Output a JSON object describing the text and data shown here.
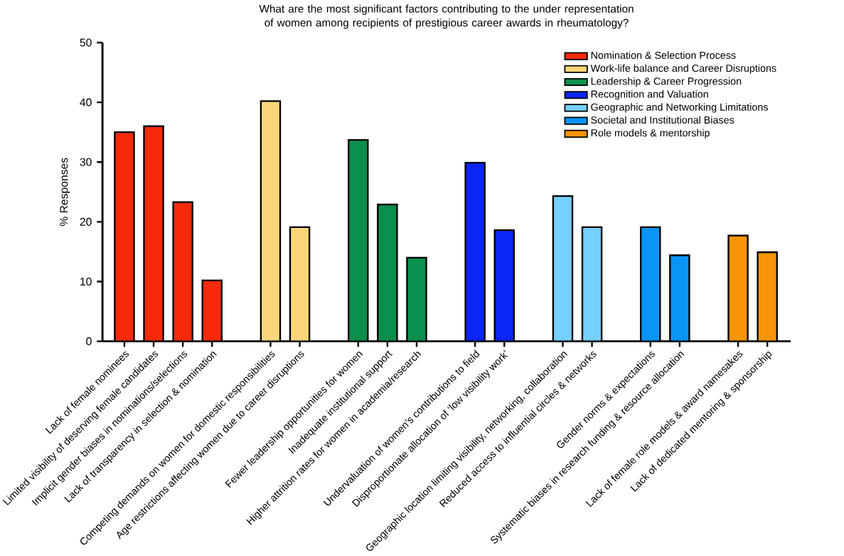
{
  "chart_data": {
    "type": "bar",
    "title": "What are the most significant factors contributing to the under representation of women among recipients of prestigious career awards in rheumatology?",
    "ylabel": "% Responses",
    "categories": [
      "Lack of female nominees",
      "Limited visibility of deserving female candidates",
      "Implicit gender biases in nominations/selections",
      "Lack of transparency in selection & nomination",
      "Competing demands on women for domestic responsibilities",
      "Age restrictions affecting women due to career disruptions",
      "Fewer leadership opportunities for women",
      "Inadequate institutional support",
      "Higher attrition rates for women in academia/research",
      "Undervaluation of women’s contributions to field",
      "Disproportionate allocation of ‘low visibility work’",
      "Geographic location limiting visibility, networking, collaboration",
      "Reduced access to influential circles & networks",
      "Gender norms & expectations",
      "Systematic biases in research funding & resource allocation",
      "Lack of female role models & award namesakes",
      "Lack of dedicated mentoring & sponsorship"
    ],
    "series": [
      {
        "name": "Nomination & Selection Process",
        "color": "#f52a0a",
        "values": [
          35.0,
          36.0,
          23.3,
          10.2,
          null,
          null,
          null,
          null,
          null,
          null,
          null,
          null,
          null,
          null,
          null,
          null,
          null
        ]
      },
      {
        "name": "Work-life balance and Career Disruptions",
        "color": "#fcd57a",
        "values": [
          null,
          null,
          null,
          null,
          40.2,
          19.1,
          null,
          null,
          null,
          null,
          null,
          null,
          null,
          null,
          null,
          null,
          null
        ]
      },
      {
        "name": "Leadership & Career Progression",
        "color": "#0b8f4e",
        "values": [
          null,
          null,
          null,
          null,
          null,
          null,
          33.7,
          22.9,
          14.0,
          null,
          null,
          null,
          null,
          null,
          null,
          null,
          null
        ]
      },
      {
        "name": "Recognition and Valuation",
        "color": "#0a25f5",
        "values": [
          null,
          null,
          null,
          null,
          null,
          null,
          null,
          null,
          null,
          29.9,
          18.6,
          null,
          null,
          null,
          null,
          null,
          null
        ]
      },
      {
        "name": "Geographic and Networking Limitations",
        "color": "#75d0fb",
        "values": [
          null,
          null,
          null,
          null,
          null,
          null,
          null,
          null,
          null,
          null,
          null,
          24.3,
          19.1,
          null,
          null,
          null,
          null
        ]
      },
      {
        "name": "Societal and Institutional Biases",
        "color": "#0895f5",
        "values": [
          null,
          null,
          null,
          null,
          null,
          null,
          null,
          null,
          null,
          null,
          null,
          null,
          null,
          19.1,
          14.4,
          null,
          null
        ]
      },
      {
        "name": "Role models & mentorship",
        "color": "#f79408",
        "values": [
          null,
          null,
          null,
          null,
          null,
          null,
          null,
          null,
          null,
          null,
          null,
          null,
          null,
          null,
          null,
          17.7,
          14.9
        ]
      }
    ],
    "ylim": [
      0,
      50
    ],
    "yticks": [
      0,
      10,
      20,
      30,
      40,
      50
    ],
    "legend": "top right"
  }
}
